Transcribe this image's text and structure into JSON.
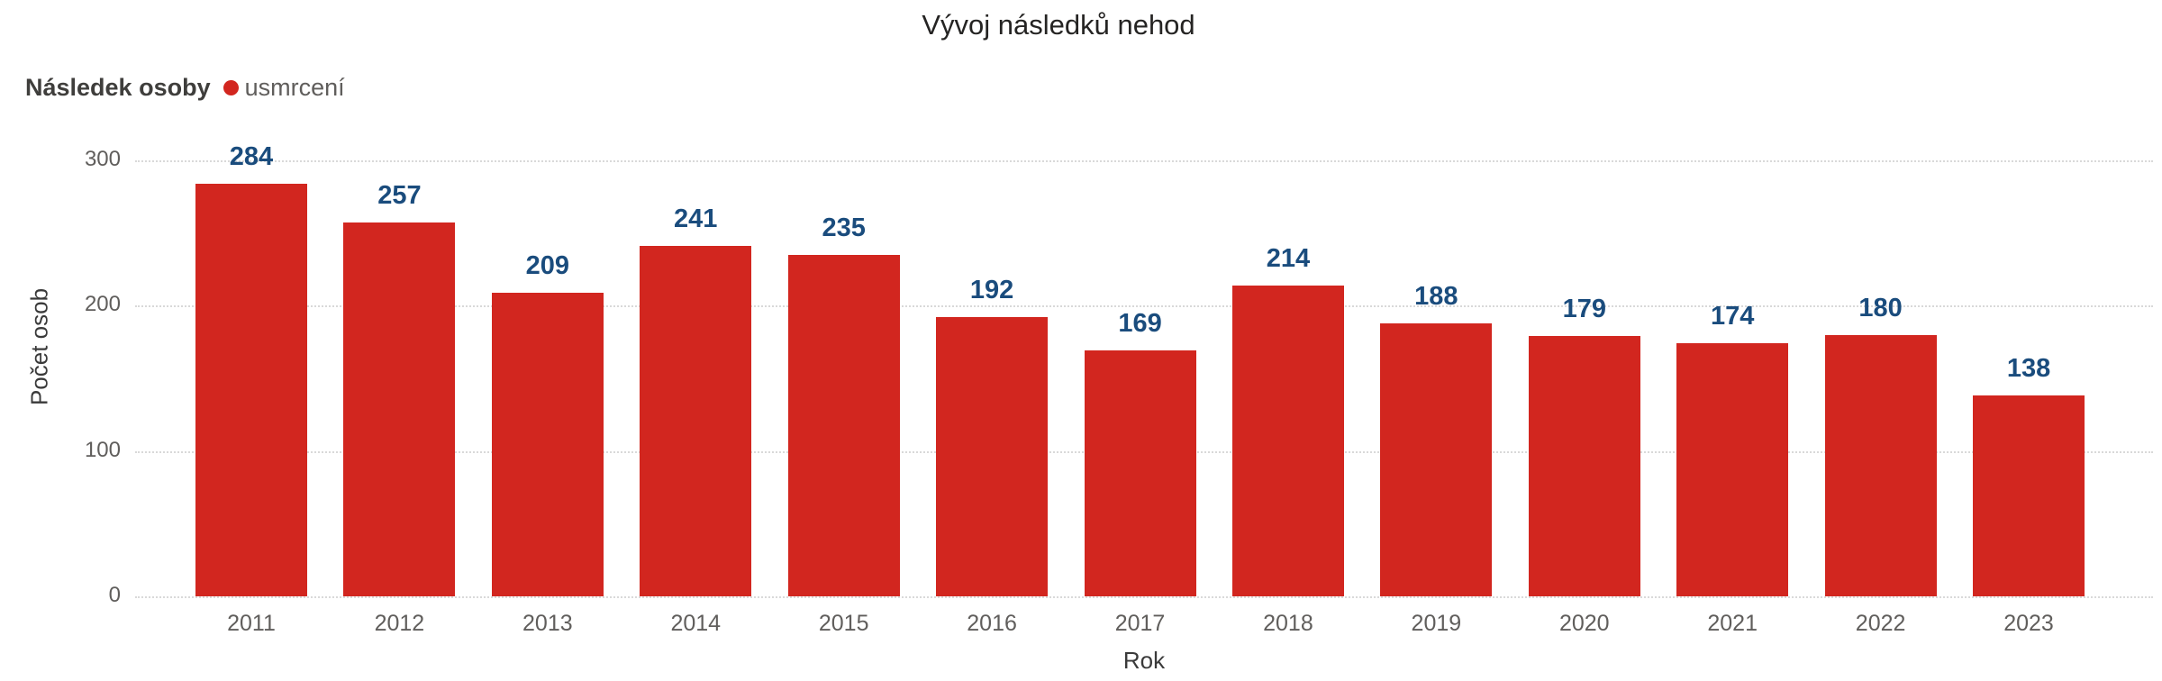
{
  "title": "Vývoj následků nehod",
  "legend": {
    "title": "Následek osoby",
    "series_label": "usmrcení"
  },
  "colors": {
    "bar": "#d2261f",
    "value_label": "#1a4c7d",
    "tick_label": "#605e5c",
    "axis_title": "#3a3a3a",
    "title": "#252423",
    "gridline": "#d9d9d9",
    "legend_title": "#3f3e3c",
    "legend_label": "#605e5c"
  },
  "chart_data": {
    "type": "bar",
    "title": "Vývoj následků nehod",
    "categories": [
      "2011",
      "2012",
      "2013",
      "2014",
      "2015",
      "2016",
      "2017",
      "2018",
      "2019",
      "2020",
      "2021",
      "2022",
      "2023"
    ],
    "series": [
      {
        "name": "usmrcení",
        "values": [
          284,
          257,
          209,
          241,
          235,
          192,
          169,
          214,
          188,
          179,
          174,
          180,
          138
        ]
      }
    ],
    "values": [
      284,
      257,
      209,
      241,
      235,
      192,
      169,
      214,
      188,
      179,
      174,
      180,
      138
    ],
    "xlabel": "Rok",
    "ylabel": "Počet osob",
    "ylim": [
      0,
      300
    ],
    "yticks": [
      0,
      100,
      200,
      300
    ],
    "grid": "horizontal-dotted",
    "legend_position": "top-left"
  }
}
